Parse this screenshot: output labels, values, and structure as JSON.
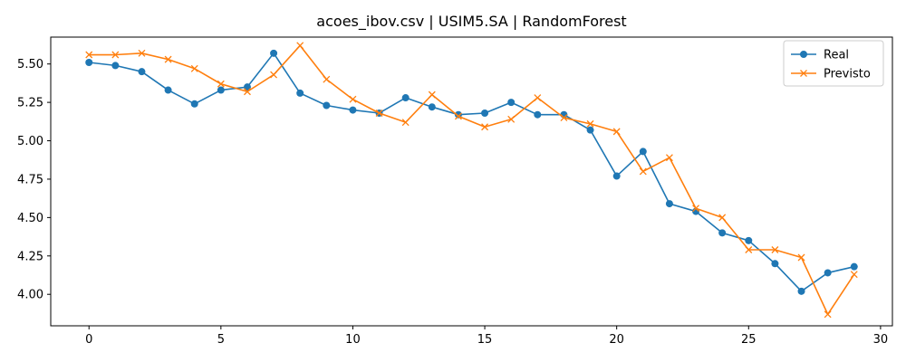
{
  "chart_data": {
    "type": "line",
    "title": "acoes_ibov.csv | USIM5.SA | RandomForest",
    "xlabel": "",
    "ylabel": "",
    "x": [
      0,
      1,
      2,
      3,
      4,
      5,
      6,
      7,
      8,
      9,
      10,
      11,
      12,
      13,
      14,
      15,
      16,
      17,
      18,
      19,
      20,
      21,
      22,
      23,
      24,
      25,
      26,
      27,
      28,
      29
    ],
    "xlim": [
      -1.45,
      30.45
    ],
    "ylim": [
      3.795,
      5.675
    ],
    "xticks": [
      0,
      5,
      10,
      15,
      20,
      25,
      30
    ],
    "xtick_labels": [
      "0",
      "5",
      "10",
      "15",
      "20",
      "25",
      "30"
    ],
    "yticks": [
      4.0,
      4.25,
      4.5,
      4.75,
      5.0,
      5.25,
      5.5
    ],
    "ytick_labels": [
      "4.00",
      "4.25",
      "4.50",
      "4.75",
      "5.00",
      "5.25",
      "5.50"
    ],
    "grid": false,
    "legend_position": "top-right",
    "series": [
      {
        "name": "Real",
        "color": "#1f77b4",
        "marker": "circle",
        "values": [
          5.51,
          5.49,
          5.45,
          5.33,
          5.24,
          5.33,
          5.35,
          5.57,
          5.31,
          5.23,
          5.2,
          5.18,
          5.28,
          5.22,
          5.17,
          5.18,
          5.25,
          5.17,
          5.17,
          5.07,
          4.77,
          4.93,
          4.59,
          4.54,
          4.4,
          4.35,
          4.2,
          4.02,
          4.14,
          4.18
        ]
      },
      {
        "name": "Previsto",
        "color": "#ff7f0e",
        "marker": "x",
        "values": [
          5.56,
          5.56,
          5.57,
          5.53,
          5.47,
          5.37,
          5.32,
          5.43,
          5.62,
          5.4,
          5.27,
          5.18,
          5.12,
          5.3,
          5.16,
          5.09,
          5.14,
          5.28,
          5.15,
          5.11,
          5.06,
          4.8,
          4.89,
          4.56,
          4.5,
          4.29,
          4.29,
          4.24,
          3.87,
          4.13
        ]
      }
    ]
  }
}
